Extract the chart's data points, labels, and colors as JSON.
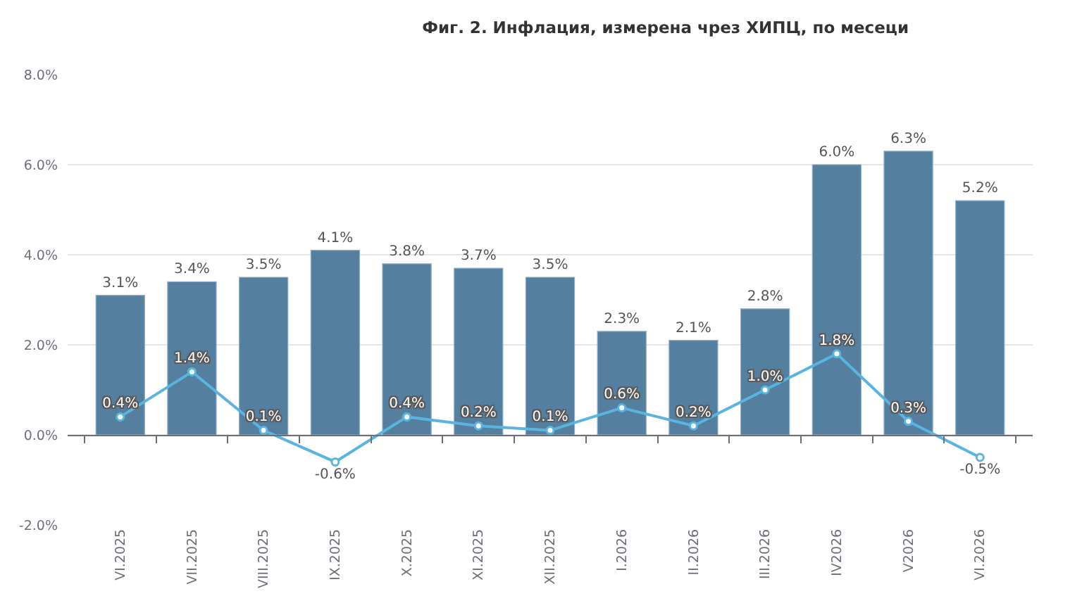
{
  "chart_data": {
    "type": "bar",
    "title": "Фиг. 2. Инфлация, измерена чрез ХИПЦ, по месеци",
    "categories": [
      "VI.2025",
      "VII.2025",
      "VIII.2025",
      "IX.2025",
      "X.2025",
      "XI.2025",
      "XII.2025",
      "I.2026",
      "II.2026",
      "III.2026",
      "IV2026",
      "V2026",
      "VI.2026"
    ],
    "series": [
      {
        "color": "#557f9f",
        "values": [
          3.1,
          3.4,
          3.5,
          4.1,
          3.8,
          3.7,
          3.5,
          2.3,
          2.1,
          2.8,
          6.0,
          6.3,
          5.2
        ],
        "value_labels": [
          "3.1%",
          "3.4%",
          "3.5%",
          "4.1%",
          "3.8%",
          "3.7%",
          "3.5%",
          "2.3%",
          "2.1%",
          "2.8%",
          "6.0%",
          "6.3%",
          "5.2%"
        ]
      },
      {
        "type": "line",
        "color": "#5ab4e0",
        "values": [
          0.4,
          1.4,
          0.1,
          -0.6,
          0.4,
          0.2,
          0.1,
          0.6,
          0.2,
          1.0,
          1.8,
          0.3,
          -0.5
        ],
        "value_labels": [
          "0.4%",
          "1.4%",
          "0.1%",
          "-0.6%",
          "0.4%",
          "0.2%",
          "0.1%",
          "0.6%",
          "0.2%",
          "1.0%",
          "1.8%",
          "0.3%",
          "-0.5%"
        ]
      }
    ],
    "ylim": [
      -2,
      8
    ],
    "yticks": [
      {
        "value": -2,
        "label": "-2.0%"
      },
      {
        "value": 0,
        "label": "0.0%"
      },
      {
        "value": 2,
        "label": "2.0%"
      },
      {
        "value": 4,
        "label": "4.0%"
      },
      {
        "value": 6,
        "label": "6.0%"
      },
      {
        "value": 8,
        "label": "8.0%"
      }
    ],
    "grid": "y",
    "marker": "circle"
  }
}
